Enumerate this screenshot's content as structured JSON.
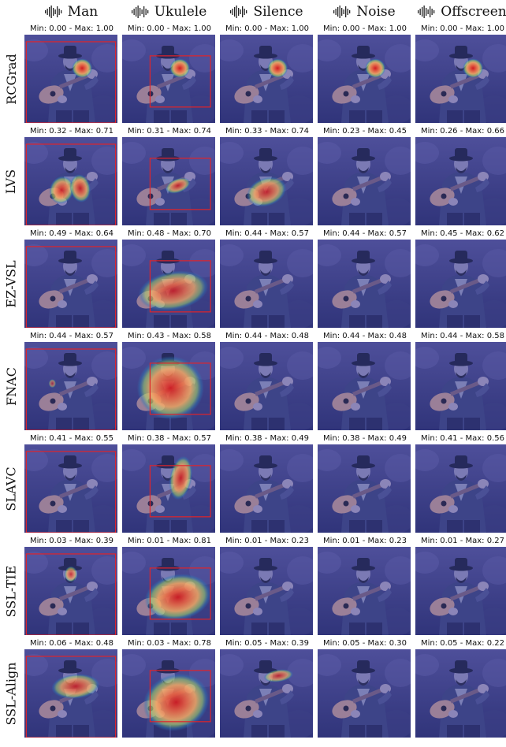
{
  "columns": [
    "Man",
    "Ukulele",
    "Silence",
    "Noise",
    "Offscreen"
  ],
  "rows": [
    {
      "method": "RCGrad",
      "ranges": [
        "Min: 0.00 - Max: 1.00",
        "Min: 0.00 - Max: 1.00",
        "Min: 0.00 - Max: 1.00",
        "Min: 0.00 - Max: 1.00",
        "Min: 0.00 - Max: 1.00"
      ]
    },
    {
      "method": "LVS",
      "ranges": [
        "Min: 0.32 - Max: 0.71",
        "Min: 0.31 - Max: 0.74",
        "Min: 0.33 - Max: 0.74",
        "Min: 0.23 - Max: 0.45",
        "Min: 0.26 - Max: 0.66"
      ]
    },
    {
      "method": "EZ-VSL",
      "ranges": [
        "Min: 0.49 - Max: 0.64",
        "Min: 0.48 - Max: 0.70",
        "Min: 0.44 - Max: 0.57",
        "Min: 0.44 - Max: 0.57",
        "Min: 0.45 - Max: 0.62"
      ]
    },
    {
      "method": "FNAC",
      "ranges": [
        "Min: 0.44 - Max: 0.57",
        "Min: 0.43 - Max: 0.58",
        "Min: 0.44 - Max: 0.48",
        "Min: 0.44 - Max: 0.48",
        "Min: 0.44 - Max: 0.58"
      ]
    },
    {
      "method": "SLAVC",
      "ranges": [
        "Min: 0.41 - Max: 0.55",
        "Min: 0.38 - Max: 0.57",
        "Min: 0.38 - Max: 0.49",
        "Min: 0.38 - Max: 0.49",
        "Min: 0.41 - Max: 0.56"
      ]
    },
    {
      "method": "SSL-TIE",
      "ranges": [
        "Min: 0.03 - Max: 0.39",
        "Min: 0.01 - Max: 0.81",
        "Min: 0.01 - Max: 0.23",
        "Min: 0.01 - Max: 0.23",
        "Min: 0.01 - Max: 0.27"
      ]
    },
    {
      "method": "SSL-Align",
      "ranges": [
        "Min: 0.06 - Max: 0.48",
        "Min: 0.03 - Max: 0.78",
        "Min: 0.05 - Max: 0.39",
        "Min: 0.05 - Max: 0.30",
        "Min: 0.05 - Max: 0.22"
      ]
    }
  ],
  "colors": {
    "overlay": "#3a3f8f",
    "box": "#e0242a",
    "heat_hot": "#d7191c",
    "heat_mid": "#fdae61",
    "heat_cool": "#2c7bb6"
  },
  "icons": {
    "column_header": "audio-waveform-icon"
  }
}
